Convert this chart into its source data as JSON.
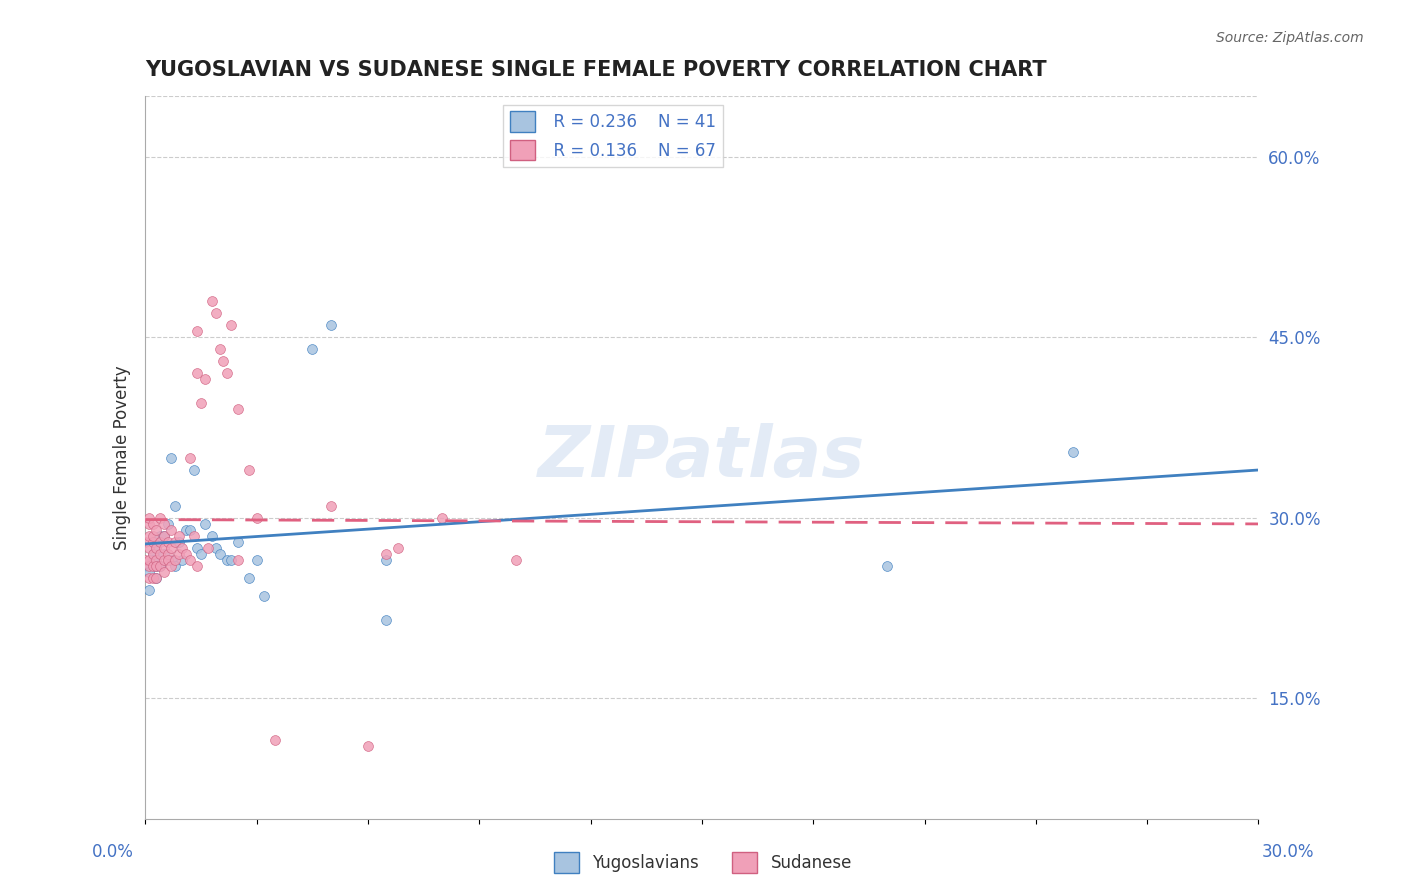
{
  "title": "YUGOSLAVIAN VS SUDANESE SINGLE FEMALE POVERTY CORRELATION CHART",
  "source": "Source: ZipAtlas.com",
  "ylabel": "Single Female Poverty",
  "ytick_labels": [
    "15.0%",
    "30.0%",
    "45.0%",
    "60.0%"
  ],
  "ytick_values": [
    0.15,
    0.3,
    0.45,
    0.6
  ],
  "xlim": [
    0.0,
    0.3
  ],
  "ylim": [
    0.05,
    0.65
  ],
  "legend_r1": "R = 0.236",
  "legend_n1": "N = 41",
  "legend_r2": "R = 0.136",
  "legend_n2": "N = 67",
  "color_yugo": "#a8c4e0",
  "color_sudan": "#f0a0b8",
  "color_yugo_line": "#4080c0",
  "color_sudan_line": "#e06080",
  "watermark": "ZIPatlas",
  "yugo_points": [
    [
      0.0,
      0.26
    ],
    [
      0.001,
      0.24
    ],
    [
      0.001,
      0.255
    ],
    [
      0.002,
      0.27
    ],
    [
      0.002,
      0.28
    ],
    [
      0.002,
      0.265
    ],
    [
      0.003,
      0.25
    ],
    [
      0.003,
      0.26
    ],
    [
      0.003,
      0.275
    ],
    [
      0.004,
      0.285
    ],
    [
      0.004,
      0.26
    ],
    [
      0.005,
      0.27
    ],
    [
      0.005,
      0.285
    ],
    [
      0.006,
      0.295
    ],
    [
      0.007,
      0.265
    ],
    [
      0.007,
      0.35
    ],
    [
      0.008,
      0.26
    ],
    [
      0.008,
      0.31
    ],
    [
      0.009,
      0.28
    ],
    [
      0.01,
      0.265
    ],
    [
      0.011,
      0.29
    ],
    [
      0.012,
      0.29
    ],
    [
      0.013,
      0.34
    ],
    [
      0.014,
      0.275
    ],
    [
      0.015,
      0.27
    ],
    [
      0.016,
      0.295
    ],
    [
      0.018,
      0.285
    ],
    [
      0.019,
      0.275
    ],
    [
      0.02,
      0.27
    ],
    [
      0.022,
      0.265
    ],
    [
      0.023,
      0.265
    ],
    [
      0.025,
      0.28
    ],
    [
      0.028,
      0.25
    ],
    [
      0.03,
      0.265
    ],
    [
      0.032,
      0.235
    ],
    [
      0.045,
      0.44
    ],
    [
      0.05,
      0.46
    ],
    [
      0.065,
      0.265
    ],
    [
      0.065,
      0.215
    ],
    [
      0.2,
      0.26
    ],
    [
      0.25,
      0.355
    ]
  ],
  "sudan_points": [
    [
      0.0,
      0.28
    ],
    [
      0.0,
      0.265
    ],
    [
      0.001,
      0.26
    ],
    [
      0.001,
      0.25
    ],
    [
      0.001,
      0.265
    ],
    [
      0.001,
      0.275
    ],
    [
      0.001,
      0.285
    ],
    [
      0.001,
      0.295
    ],
    [
      0.001,
      0.3
    ],
    [
      0.002,
      0.27
    ],
    [
      0.002,
      0.28
    ],
    [
      0.002,
      0.26
    ],
    [
      0.002,
      0.25
    ],
    [
      0.002,
      0.285
    ],
    [
      0.002,
      0.295
    ],
    [
      0.003,
      0.265
    ],
    [
      0.003,
      0.275
    ],
    [
      0.003,
      0.26
    ],
    [
      0.003,
      0.25
    ],
    [
      0.003,
      0.29
    ],
    [
      0.004,
      0.27
    ],
    [
      0.004,
      0.26
    ],
    [
      0.004,
      0.28
    ],
    [
      0.004,
      0.3
    ],
    [
      0.005,
      0.265
    ],
    [
      0.005,
      0.275
    ],
    [
      0.005,
      0.285
    ],
    [
      0.005,
      0.255
    ],
    [
      0.005,
      0.295
    ],
    [
      0.006,
      0.27
    ],
    [
      0.006,
      0.28
    ],
    [
      0.006,
      0.265
    ],
    [
      0.007,
      0.26
    ],
    [
      0.007,
      0.275
    ],
    [
      0.007,
      0.29
    ],
    [
      0.008,
      0.265
    ],
    [
      0.008,
      0.28
    ],
    [
      0.009,
      0.27
    ],
    [
      0.009,
      0.285
    ],
    [
      0.01,
      0.275
    ],
    [
      0.011,
      0.27
    ],
    [
      0.012,
      0.265
    ],
    [
      0.012,
      0.35
    ],
    [
      0.013,
      0.285
    ],
    [
      0.014,
      0.26
    ],
    [
      0.014,
      0.455
    ],
    [
      0.014,
      0.42
    ],
    [
      0.015,
      0.395
    ],
    [
      0.016,
      0.415
    ],
    [
      0.017,
      0.275
    ],
    [
      0.018,
      0.48
    ],
    [
      0.019,
      0.47
    ],
    [
      0.02,
      0.44
    ],
    [
      0.021,
      0.43
    ],
    [
      0.022,
      0.42
    ],
    [
      0.023,
      0.46
    ],
    [
      0.025,
      0.39
    ],
    [
      0.025,
      0.265
    ],
    [
      0.028,
      0.34
    ],
    [
      0.03,
      0.3
    ],
    [
      0.035,
      0.115
    ],
    [
      0.05,
      0.31
    ],
    [
      0.06,
      0.11
    ],
    [
      0.065,
      0.27
    ],
    [
      0.068,
      0.275
    ],
    [
      0.08,
      0.3
    ],
    [
      0.1,
      0.265
    ]
  ]
}
